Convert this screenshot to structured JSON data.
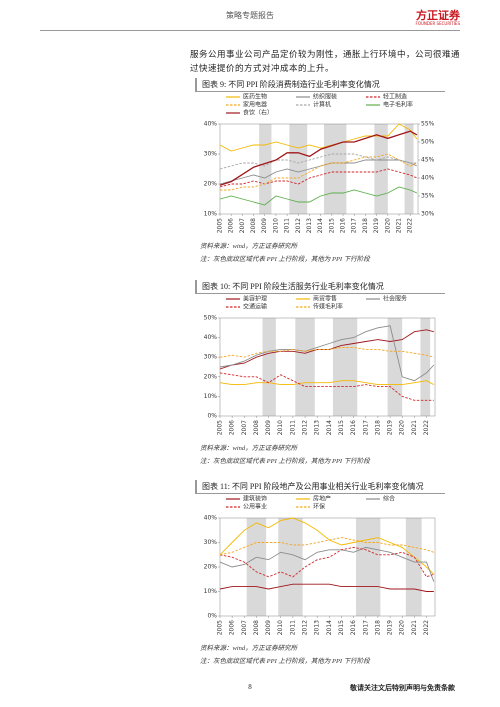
{
  "header": {
    "title": "策略专题报告",
    "logo": "方正证券",
    "logo_sub": "FOUNDER SECURITIES"
  },
  "intro": [
    "服务公用事业公司产品定价较为刚性，通胀上行环境中，公司很难通",
    "过快速提价的方式对冲成本的上升。"
  ],
  "footer": {
    "page": "8",
    "disclaimer": "敬请关注文后特别声明与免责条款"
  },
  "chart_data": [
    {
      "type": "line",
      "title": "图表 9:  不同 PPI 阶段消费制造行业毛利率变化情况",
      "x": [
        2005,
        2006,
        2007,
        2008,
        2009,
        2010,
        2011,
        2012,
        2013,
        2014,
        2015,
        2016,
        2017,
        2018,
        2019,
        2020,
        2021,
        2022,
        2022.6
      ],
      "xlim": [
        2005,
        2022.7
      ],
      "xticks": [
        2005,
        2006,
        2007,
        2008,
        2009,
        2010,
        2011,
        2012,
        2013,
        2014,
        2015,
        2016,
        2017,
        2018,
        2019,
        2020,
        2021,
        2022
      ],
      "ylim": [
        10,
        40
      ],
      "yticks": [
        {
          "value": 10,
          "label": "10%"
        },
        {
          "value": 20,
          "label": "20%"
        },
        {
          "value": 30,
          "label": "30%"
        },
        {
          "value": 40,
          "label": "40%"
        }
      ],
      "y2lim": [
        30,
        55
      ],
      "y2ticks": [
        {
          "value": 30,
          "label": "30%"
        },
        {
          "value": 35,
          "label": "35%"
        },
        {
          "value": 40,
          "label": "40%"
        },
        {
          "value": 45,
          "label": "45%"
        },
        {
          "value": 50,
          "label": "50%"
        },
        {
          "value": 55,
          "label": "55%"
        }
      ],
      "shaded": [
        [
          2008.5,
          2009.6
        ],
        [
          2011.2,
          2012.8
        ],
        [
          2014.3,
          2016.3
        ],
        [
          2018.8,
          2020.0
        ],
        [
          2021.5,
          2022.3
        ]
      ],
      "series": [
        {
          "name": "医药生物",
          "color": "#f5b800",
          "style": "solid",
          "values": [
            33,
            31,
            32,
            33,
            33,
            34,
            33,
            32,
            33,
            32,
            33,
            34,
            35,
            36,
            36,
            36,
            40,
            38,
            35
          ]
        },
        {
          "name": "纺织服装",
          "color": "#8c8c8c",
          "style": "solid",
          "values": [
            20,
            21,
            22,
            23,
            22,
            24,
            25,
            24,
            25,
            26,
            27,
            27,
            27,
            28,
            28,
            28,
            28,
            27,
            26
          ]
        },
        {
          "name": "轻工制造",
          "color": "#d2262a",
          "style": "dashed",
          "values": [
            19,
            20,
            20,
            21,
            20,
            21,
            21,
            20,
            22,
            23,
            24,
            24,
            24,
            24,
            24,
            25,
            24,
            23,
            22
          ]
        },
        {
          "name": "家用电器",
          "color": "#f5a623",
          "style": "dashed",
          "values": [
            18,
            18,
            19,
            19,
            20,
            22,
            22,
            22,
            24,
            26,
            27,
            27,
            28,
            29,
            29,
            30,
            28,
            26,
            27
          ]
        },
        {
          "name": "计算机",
          "color": "#a6a6a6",
          "style": "dashed",
          "values": [
            25,
            26,
            27,
            27,
            26,
            28,
            28,
            27,
            28,
            29,
            30,
            30,
            30,
            29,
            28,
            29,
            28,
            27,
            27
          ]
        },
        {
          "name": "电子毛利率",
          "color": "#5bb04a",
          "style": "solid",
          "values": [
            15,
            16,
            15,
            14,
            13,
            16,
            15,
            14,
            14,
            16,
            17,
            17,
            18,
            17,
            16,
            17,
            19,
            18,
            17
          ]
        },
        {
          "name": "食饮（右）",
          "color": "#a0171c",
          "style": "solid",
          "axis": "y2",
          "values": [
            38,
            39,
            41,
            43,
            44,
            45,
            47,
            47,
            46,
            48,
            49,
            50,
            50,
            51,
            52,
            51,
            52,
            53,
            52
          ]
        }
      ],
      "source": "资料来源：wind，方正证券研究所",
      "note": "注：灰色底纹区域代表 PPI 上行阶段，其他为 PPI 下行阶段"
    },
    {
      "type": "line",
      "title": "图表 10:  不同 PPI 阶段生活服务行业毛利率变化情况",
      "x": [
        2005,
        2006,
        2007,
        2008,
        2009,
        2010,
        2011,
        2012,
        2013,
        2014,
        2015,
        2016,
        2017,
        2018,
        2019,
        2020,
        2021,
        2022,
        2022.6
      ],
      "xlim": [
        2005,
        2022.7
      ],
      "xticks": [
        2005,
        2006,
        2007,
        2008,
        2009,
        2010,
        2011,
        2012,
        2013,
        2014,
        2015,
        2016,
        2017,
        2018,
        2019,
        2020,
        2021,
        2022
      ],
      "ylim": [
        0,
        50
      ],
      "yticks": [
        {
          "value": 0,
          "label": "0%"
        },
        {
          "value": 10,
          "label": "10%"
        },
        {
          "value": 20,
          "label": "20%"
        },
        {
          "value": 30,
          "label": "30%"
        },
        {
          "value": 40,
          "label": "40%"
        },
        {
          "value": 50,
          "label": "50%"
        }
      ],
      "shaded": [
        [
          2008.5,
          2009.6
        ],
        [
          2011.2,
          2012.8
        ],
        [
          2014.3,
          2016.3
        ],
        [
          2018.8,
          2020.0
        ],
        [
          2021.5,
          2022.3
        ]
      ],
      "series": [
        {
          "name": "美容护理",
          "color": "#a0171c",
          "style": "solid",
          "values": [
            24,
            26,
            27,
            30,
            32,
            33,
            33,
            32,
            34,
            34,
            36,
            37,
            38,
            39,
            38,
            39,
            43,
            44,
            43
          ]
        },
        {
          "name": "商贸零售",
          "color": "#f5b800",
          "style": "solid",
          "values": [
            17,
            16,
            16,
            17,
            17,
            16,
            16,
            17,
            17,
            17,
            18,
            18,
            17,
            16,
            16,
            16,
            17,
            18,
            16
          ]
        },
        {
          "name": "社会服务",
          "color": "#8c8c8c",
          "style": "solid",
          "values": [
            25,
            26,
            28,
            31,
            33,
            34,
            34,
            33,
            35,
            37,
            39,
            40,
            43,
            45,
            46,
            20,
            18,
            22,
            26
          ]
        },
        {
          "name": "交通运输",
          "color": "#d2262a",
          "style": "dashed",
          "values": [
            22,
            21,
            20,
            20,
            17,
            21,
            18,
            15,
            15,
            15,
            15,
            15,
            16,
            15,
            15,
            10,
            8,
            8,
            8
          ]
        },
        {
          "name": "传媒毛利率",
          "color": "#f5a623",
          "style": "dashed",
          "values": [
            30,
            31,
            30,
            32,
            33,
            33,
            34,
            33,
            34,
            34,
            35,
            35,
            34,
            34,
            33,
            33,
            32,
            31,
            30
          ]
        }
      ],
      "source": "资料来源：wind，方正证券研究所",
      "note": "注：灰色底纹区域代表 PPI 上行阶段，其他为 PPI 下行阶段"
    },
    {
      "type": "line",
      "title": "图表 11:  不同 PPI 阶段地产及公用事业相关行业毛利率变化情况",
      "x": [
        2005,
        2006,
        2007,
        2008,
        2009,
        2010,
        2011,
        2012,
        2013,
        2014,
        2015,
        2016,
        2017,
        2018,
        2019,
        2020,
        2021,
        2022,
        2022.6
      ],
      "xlim": [
        2005,
        2022.7
      ],
      "xticks": [
        2005,
        2006,
        2007,
        2008,
        2009,
        2010,
        2011,
        2012,
        2013,
        2014,
        2015,
        2016,
        2017,
        2018,
        2019,
        2020,
        2021,
        2022
      ],
      "ylim": [
        0,
        40
      ],
      "yticks": [
        {
          "value": 0,
          "label": "0%"
        },
        {
          "value": 10,
          "label": "10%"
        },
        {
          "value": 20,
          "label": "20%"
        },
        {
          "value": 30,
          "label": "30%"
        },
        {
          "value": 40,
          "label": "40%"
        }
      ],
      "shaded": [
        [
          2007.2,
          2008.8
        ],
        [
          2009.8,
          2011.8
        ],
        [
          2016.2,
          2018.2
        ],
        [
          2020.3,
          2021.6
        ]
      ],
      "series": [
        {
          "name": "建筑装饰",
          "color": "#a0171c",
          "style": "solid",
          "values": [
            11,
            12,
            12,
            12,
            11,
            12,
            13,
            13,
            13,
            13,
            12,
            12,
            12,
            12,
            11,
            11,
            11,
            10,
            10
          ]
        },
        {
          "name": "房地产",
          "color": "#f5b800",
          "style": "solid",
          "values": [
            25,
            30,
            35,
            38,
            36,
            39,
            40,
            38,
            35,
            31,
            29,
            30,
            31,
            32,
            30,
            28,
            24,
            20,
            17
          ]
        },
        {
          "name": "综合",
          "color": "#8c8c8c",
          "style": "solid",
          "values": [
            22,
            20,
            21,
            24,
            23,
            26,
            25,
            23,
            26,
            27,
            27,
            26,
            28,
            27,
            26,
            24,
            22,
            22,
            14
          ]
        },
        {
          "name": "公用事业",
          "color": "#d2262a",
          "style": "dashed",
          "values": [
            25,
            24,
            22,
            18,
            16,
            18,
            16,
            20,
            23,
            24,
            27,
            28,
            27,
            25,
            25,
            26,
            24,
            16,
            17
          ]
        },
        {
          "name": "环保",
          "color": "#f5a623",
          "style": "dashed",
          "values": [
            25,
            26,
            28,
            30,
            30,
            30,
            29,
            29,
            30,
            31,
            32,
            31,
            30,
            30,
            29,
            29,
            28,
            27,
            26
          ]
        }
      ],
      "source": "资料来源：wind，方正证券研究所",
      "note": "注：灰色底纹区域代表 PPI 上行阶段，其他为 PPI 下行阶段"
    }
  ]
}
